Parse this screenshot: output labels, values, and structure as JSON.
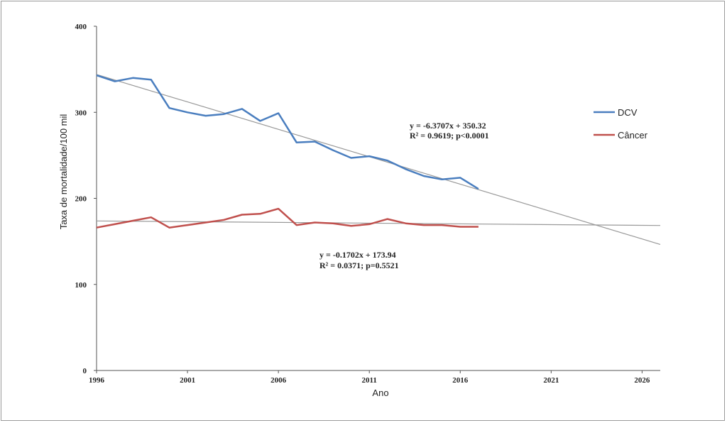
{
  "chart_data": {
    "type": "line",
    "title": "",
    "xlabel": "Ano",
    "ylabel": "Taxa de mortalidade/100 mil",
    "xlim": [
      1996,
      2027
    ],
    "ylim": [
      0,
      400
    ],
    "x_ticks": [
      "1996",
      "2001",
      "2006",
      "2011",
      "2016",
      "2021",
      "2026"
    ],
    "y_ticks": [
      "0",
      "100",
      "200",
      "300",
      "400"
    ],
    "grid": false,
    "legend_position": "right",
    "series": [
      {
        "name": "DCV",
        "color": "#4a7ebf",
        "points": [
          [
            1996,
            343
          ],
          [
            1997,
            336
          ],
          [
            1998,
            340
          ],
          [
            1999,
            338
          ],
          [
            2000,
            305
          ],
          [
            2001,
            300
          ],
          [
            2002,
            296
          ],
          [
            2003,
            298
          ],
          [
            2004,
            304
          ],
          [
            2005,
            290
          ],
          [
            2006,
            299
          ],
          [
            2007,
            265
          ],
          [
            2008,
            266
          ],
          [
            2009,
            256
          ],
          [
            2010,
            247
          ],
          [
            2011,
            249
          ],
          [
            2012,
            244
          ],
          [
            2013,
            234
          ],
          [
            2014,
            226
          ],
          [
            2015,
            222
          ],
          [
            2016,
            224
          ],
          [
            2017,
            211
          ]
        ]
      },
      {
        "name": "Câncer",
        "color": "#c0504d",
        "points": [
          [
            1996,
            166
          ],
          [
            1997,
            170
          ],
          [
            1998,
            174
          ],
          [
            1999,
            178
          ],
          [
            2000,
            166
          ],
          [
            2001,
            169
          ],
          [
            2002,
            172
          ],
          [
            2003,
            175
          ],
          [
            2004,
            181
          ],
          [
            2005,
            182
          ],
          [
            2006,
            188
          ],
          [
            2007,
            169
          ],
          [
            2008,
            172
          ],
          [
            2009,
            171
          ],
          [
            2010,
            168
          ],
          [
            2011,
            170
          ],
          [
            2012,
            176
          ],
          [
            2013,
            171
          ],
          [
            2014,
            169
          ],
          [
            2015,
            169
          ],
          [
            2016,
            167
          ],
          [
            2017,
            167
          ]
        ]
      }
    ],
    "trendlines": [
      {
        "series": "DCV",
        "slope": -6.3707,
        "intercept": 350.32,
        "x_start": 1996,
        "x_end": 2027,
        "color": "#999999"
      },
      {
        "series": "Câncer",
        "slope": -0.1702,
        "intercept": 173.94,
        "x_start": 1996,
        "x_end": 2027,
        "color": "#999999"
      }
    ],
    "annotations": [
      {
        "line1": "y = -6.3707x + 350.32",
        "line2": "R² = 0.9619; p<0.0001"
      },
      {
        "line1": "y = -0.1702x + 173.94",
        "line2": "R² = 0.0371; p=0.5521"
      }
    ]
  }
}
